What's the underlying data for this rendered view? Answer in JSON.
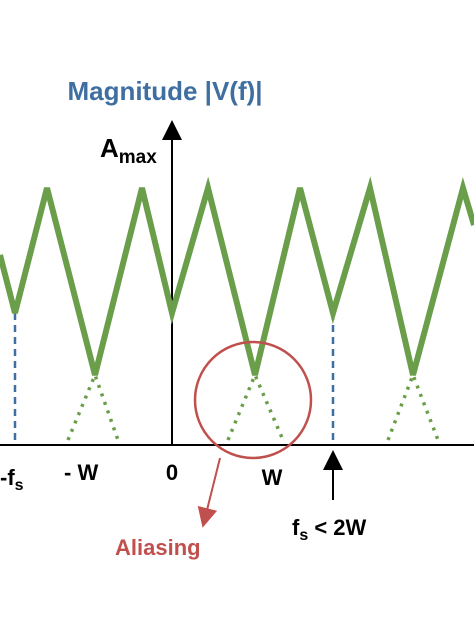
{
  "title": "Magnitude |V(f)|",
  "y_axis_label": {
    "main": "A",
    "sub": "max"
  },
  "x_labels": {
    "neg_fs": {
      "main": "-f",
      "sub": "s"
    },
    "neg_w": "- W",
    "zero": "0",
    "w": "W"
  },
  "condition": {
    "main": "f",
    "sub": "s",
    "rest": " < 2W"
  },
  "annotation": "Aliasing"
}
